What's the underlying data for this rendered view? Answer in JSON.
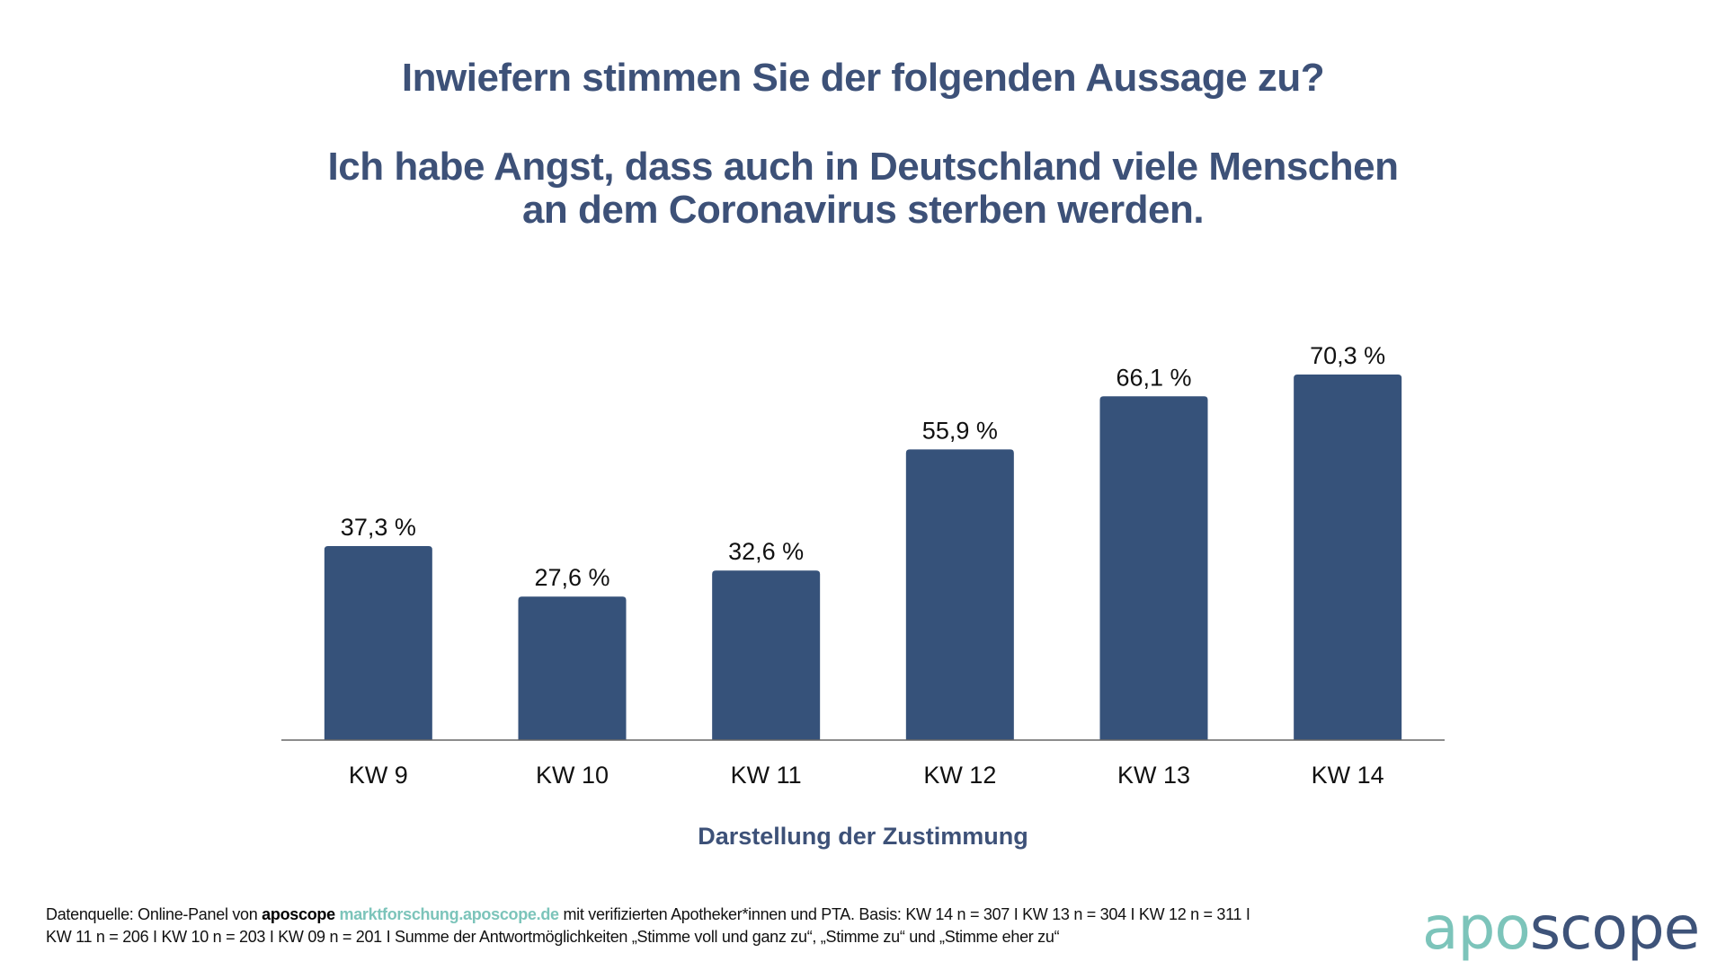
{
  "title": {
    "question": "Inwiefern stimmen Sie der folgenden Aussage zu?",
    "statement_line1": "Ich habe Angst, dass auch in Deutschland viele Menschen",
    "statement_line2": "an dem Coronavirus sterben werden."
  },
  "chart_data": {
    "type": "bar",
    "title": "Inwiefern stimmen Sie der folgenden Aussage zu? Ich habe Angst, dass auch in Deutschland viele Menschen an dem Coronavirus sterben werden.",
    "categories": [
      "KW 9",
      "KW 10",
      "KW 11",
      "KW 12",
      "KW 13",
      "KW 14"
    ],
    "values": [
      37.3,
      27.6,
      32.6,
      55.9,
      66.1,
      70.3
    ],
    "value_labels": [
      "37,3 %",
      "27,6 %",
      "32,6 %",
      "55,9 %",
      "66,1 %",
      "70,3 %"
    ],
    "unit": "%",
    "xlabel": "Darstellung der Zustimmung",
    "ylabel": "",
    "ylim": [
      0,
      100
    ],
    "grid": false,
    "legend": "none",
    "bar_color": "#36527a"
  },
  "footer": {
    "prefix": "Datenquelle: Online-Panel von ",
    "brand": "aposcope",
    "link": "marktforschung.aposcope.de",
    "line1_rest": " mit verifizierten Apotheker*innen und PTA. Basis: KW 14 n = 307 I KW 13 n = 304 I KW 12 n = 311 I",
    "line2": "KW 11 n = 206 I KW 10 n = 203 I KW 09 n = 201 I Summe der Antwortmöglichkeiten „Stimme voll und ganz zu“, „Stimme zu“ und „Stimme eher zu“"
  },
  "logo": {
    "part1": "apo",
    "part2": "scope",
    "color1": "#7cc4ba",
    "color2": "#3e5379"
  }
}
